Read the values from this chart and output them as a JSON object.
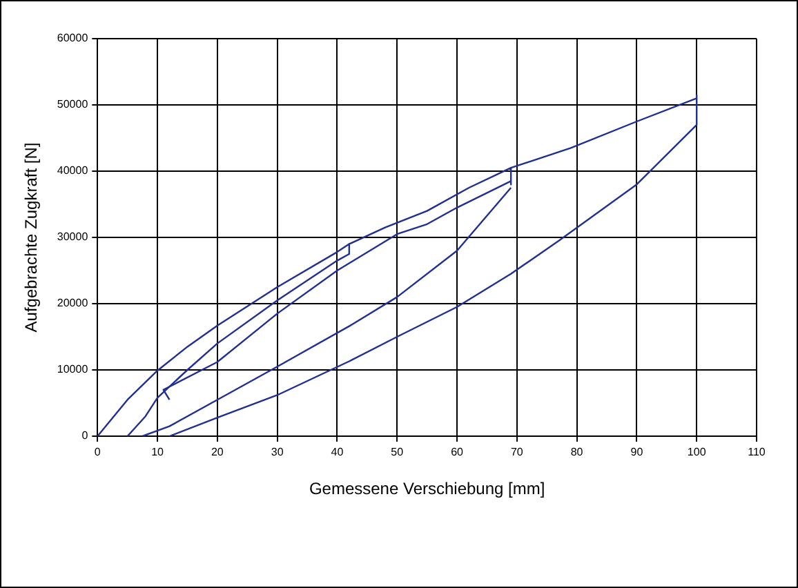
{
  "chart_data": {
    "type": "line",
    "xlabel": "Gemessene Verschiebung [mm]",
    "ylabel": "Aufgebrachte Zugkraft [N]",
    "xlim": [
      0,
      110
    ],
    "xticks": [
      0,
      10,
      20,
      30,
      40,
      50,
      60,
      70,
      80,
      90,
      100,
      110
    ],
    "ylim": [
      0,
      60000
    ],
    "yticks": [
      0,
      10000,
      20000,
      30000,
      40000,
      50000,
      60000
    ],
    "grid": true,
    "legend": false,
    "marker": "none",
    "line_style": "solid",
    "series": [
      {
        "color": "#1f2f94",
        "x": [
          0,
          5,
          10,
          15,
          20,
          30,
          40,
          42,
          42
        ],
        "values": [
          0,
          5500,
          9900,
          13500,
          16700,
          22500,
          27800,
          29000,
          27500
        ]
      },
      {
        "color": "#1f2f94",
        "x": [
          5,
          8,
          10,
          15,
          20,
          30,
          40,
          42
        ],
        "values": [
          0,
          3000,
          5800,
          10000,
          14000,
          20500,
          26500,
          27500
        ]
      },
      {
        "color": "#1f2f94",
        "x": [
          12,
          11,
          20,
          30,
          40,
          50,
          55,
          60,
          69
        ],
        "values": [
          5500,
          7000,
          11200,
          18500,
          25000,
          30500,
          32000,
          34500,
          38500
        ]
      },
      {
        "color": "#1f2f94",
        "x": [
          42,
          48,
          55,
          62,
          69,
          69
        ],
        "values": [
          29000,
          31500,
          34000,
          37500,
          40500,
          38000
        ]
      },
      {
        "color": "#1f2f94",
        "x": [
          7.5,
          12,
          20,
          30,
          42,
          50,
          60,
          69
        ],
        "values": [
          0,
          1500,
          5500,
          10500,
          16600,
          21000,
          28000,
          37500
        ]
      },
      {
        "color": "#1f2f94",
        "x": [
          12,
          20,
          30,
          42,
          50,
          60,
          69,
          77,
          90,
          100
        ],
        "values": [
          0,
          2800,
          6200,
          11300,
          15000,
          19500,
          24500,
          29500,
          38000,
          47000
        ]
      },
      {
        "color": "#1f2f94",
        "x": [
          69,
          79,
          90,
          100,
          100,
          100
        ],
        "values": [
          40500,
          43500,
          47500,
          51000,
          51500,
          47000
        ]
      }
    ]
  }
}
